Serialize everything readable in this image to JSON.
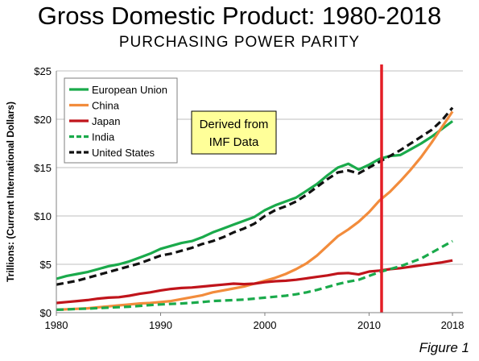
{
  "title": "Gross Domestic Product: 1980-2018",
  "subtitle": "PURCHASING POWER PARITY",
  "figure_label": "Figure 1",
  "annotation": [
    "Derived from",
    "IMF Data"
  ],
  "chart_data": {
    "type": "line",
    "ylabel": "Trillions: (Current International Dollars)",
    "xlabel": "",
    "xlim": [
      1980,
      2019
    ],
    "ylim": [
      0,
      25
    ],
    "xticks": [
      1980,
      1990,
      2000,
      2010,
      2018
    ],
    "yticks": [
      0,
      5,
      10,
      15,
      20,
      25
    ],
    "ytick_labels": [
      "$0",
      "$5",
      "$10",
      "$15",
      "$20",
      "$25"
    ],
    "grid": "horizontal",
    "legend": "top-left",
    "reference_line": {
      "x": 2011.2,
      "color": "#e41e26"
    },
    "x": [
      1980,
      1981,
      1982,
      1983,
      1984,
      1985,
      1986,
      1987,
      1988,
      1989,
      1990,
      1991,
      1992,
      1993,
      1994,
      1995,
      1996,
      1997,
      1998,
      1999,
      2000,
      2001,
      2002,
      2003,
      2004,
      2005,
      2006,
      2007,
      2008,
      2009,
      2010,
      2011,
      2012,
      2013,
      2014,
      2015,
      2016,
      2017,
      2018
    ],
    "series": [
      {
        "name": "European Union",
        "color": "#1aaa4b",
        "dash": "solid",
        "values": [
          3.5,
          3.8,
          4.0,
          4.2,
          4.5,
          4.8,
          5.0,
          5.3,
          5.7,
          6.1,
          6.6,
          6.9,
          7.2,
          7.4,
          7.8,
          8.3,
          8.7,
          9.1,
          9.5,
          9.9,
          10.6,
          11.1,
          11.5,
          11.9,
          12.6,
          13.3,
          14.2,
          15.0,
          15.4,
          14.8,
          15.3,
          15.9,
          16.2,
          16.3,
          16.9,
          17.5,
          18.2,
          19.0,
          19.8
        ]
      },
      {
        "name": "China",
        "color": "#f28c3c",
        "dash": "solid",
        "values": [
          0.3,
          0.35,
          0.4,
          0.45,
          0.55,
          0.65,
          0.75,
          0.85,
          0.95,
          1.0,
          1.1,
          1.2,
          1.4,
          1.6,
          1.8,
          2.1,
          2.3,
          2.5,
          2.7,
          3.0,
          3.3,
          3.6,
          4.0,
          4.5,
          5.1,
          5.9,
          6.9,
          7.9,
          8.6,
          9.4,
          10.4,
          11.6,
          12.5,
          13.6,
          14.8,
          16.1,
          17.6,
          19.2,
          20.8
        ]
      },
      {
        "name": "Japan",
        "color": "#c0141b",
        "dash": "solid",
        "values": [
          1.0,
          1.1,
          1.2,
          1.3,
          1.45,
          1.55,
          1.6,
          1.75,
          1.95,
          2.1,
          2.3,
          2.45,
          2.55,
          2.6,
          2.7,
          2.8,
          2.9,
          3.0,
          2.95,
          3.0,
          3.15,
          3.25,
          3.3,
          3.4,
          3.55,
          3.7,
          3.85,
          4.05,
          4.1,
          3.95,
          4.25,
          4.35,
          4.5,
          4.6,
          4.75,
          4.9,
          5.05,
          5.2,
          5.4
        ]
      },
      {
        "name": "India",
        "color": "#1aaa4b",
        "dash": "dashed",
        "values": [
          0.3,
          0.33,
          0.38,
          0.42,
          0.47,
          0.52,
          0.57,
          0.62,
          0.7,
          0.78,
          0.85,
          0.9,
          0.95,
          1.02,
          1.1,
          1.2,
          1.25,
          1.3,
          1.35,
          1.45,
          1.55,
          1.65,
          1.75,
          1.9,
          2.1,
          2.35,
          2.65,
          2.95,
          3.2,
          3.4,
          3.8,
          4.2,
          4.5,
          4.8,
          5.2,
          5.6,
          6.2,
          6.8,
          7.4
        ]
      },
      {
        "name": "United States",
        "color": "#111111",
        "dash": "dashed",
        "values": [
          2.9,
          3.1,
          3.3,
          3.6,
          3.9,
          4.2,
          4.5,
          4.8,
          5.1,
          5.5,
          5.9,
          6.1,
          6.4,
          6.7,
          7.1,
          7.4,
          7.8,
          8.3,
          8.7,
          9.2,
          10.0,
          10.6,
          11.0,
          11.5,
          12.2,
          13.0,
          13.8,
          14.5,
          14.7,
          14.4,
          15.0,
          15.6,
          16.2,
          16.8,
          17.5,
          18.2,
          18.9,
          19.9,
          21.2
        ]
      }
    ]
  }
}
